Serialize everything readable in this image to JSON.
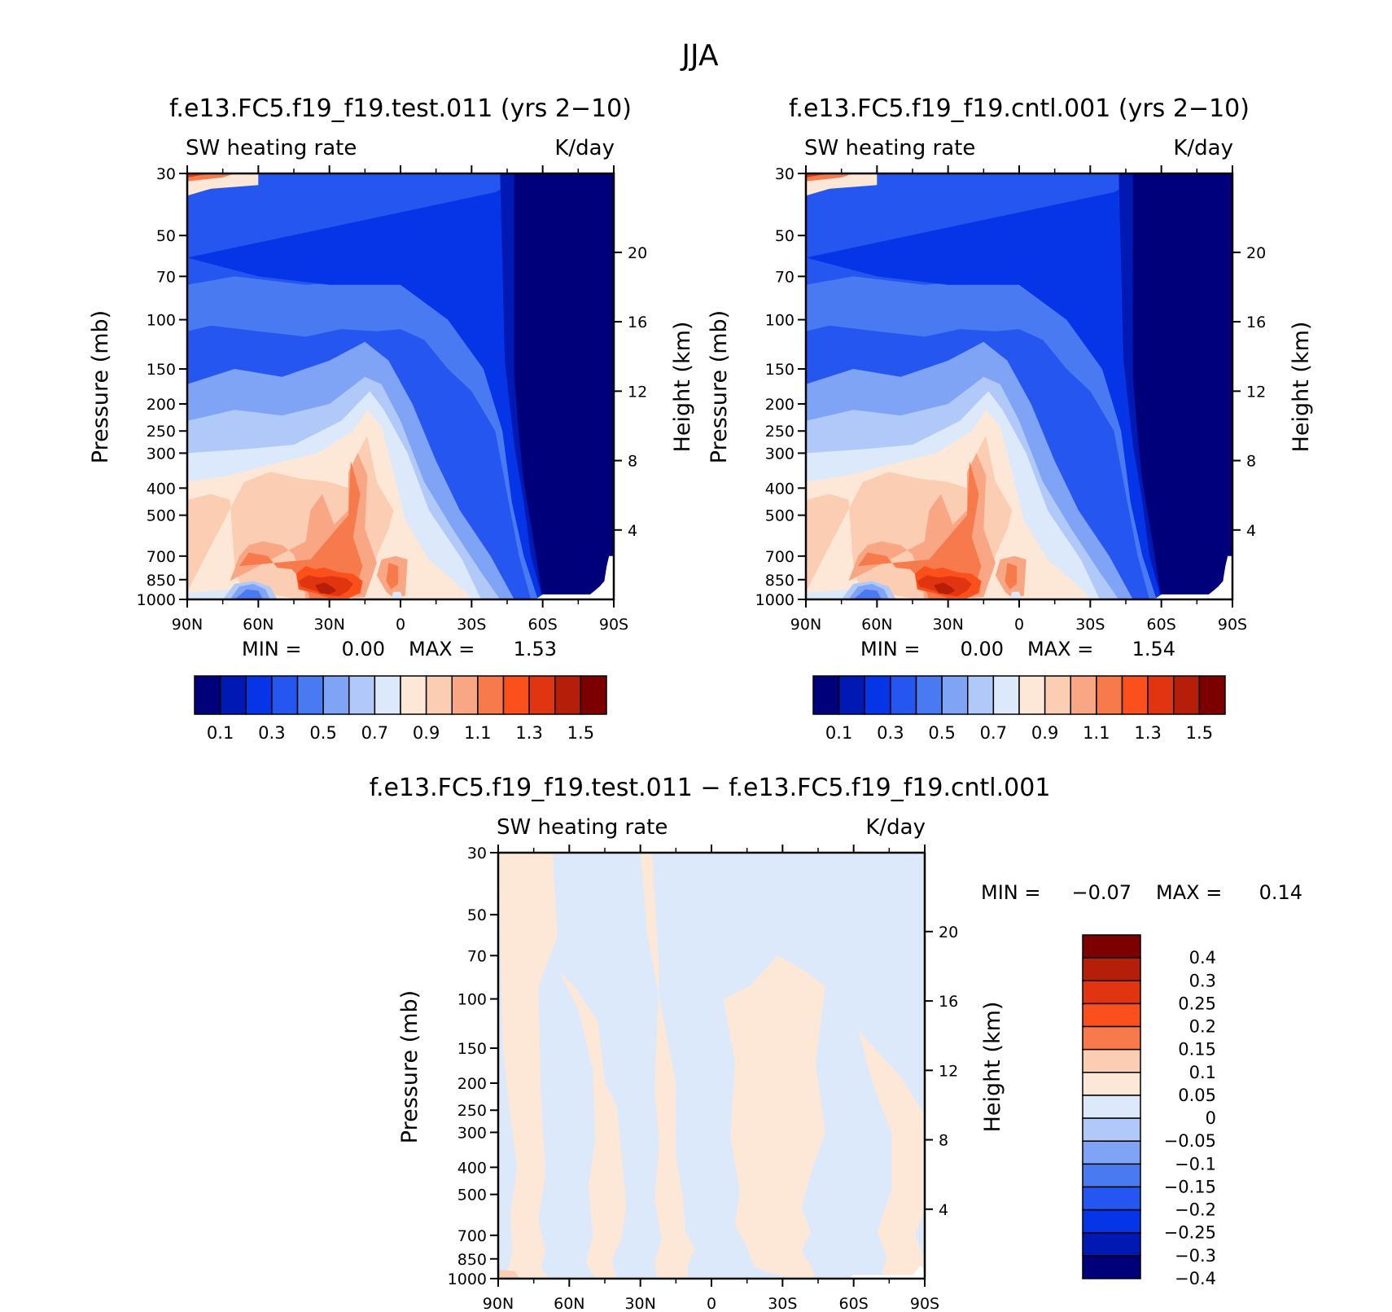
{
  "figure_title": "JJA",
  "colors": {
    "abs_levels": [
      "#00007a",
      "#0019b3",
      "#0535e6",
      "#2557f0",
      "#4a7af2",
      "#7fa3f5",
      "#b0c9f8",
      "#dbe9fb",
      "#fde8d8",
      "#fbcdb2",
      "#f8a683",
      "#f77a4c",
      "#fb4f1c",
      "#e03510",
      "#b51e08",
      "#7c0000"
    ],
    "diff_levels": [
      "#00007a",
      "#0019b3",
      "#0535e6",
      "#2557f0",
      "#4a7af2",
      "#7fa3f5",
      "#b0c9f8",
      "#dbe9fb",
      "#fde8d8",
      "#fbcdb2",
      "#f77a4c",
      "#fb4f1c",
      "#e03510",
      "#b51e08",
      "#7c0000"
    ]
  },
  "panels": [
    {
      "title": "f.e13.FC5.f19_f19.test.011 (yrs 2−10)",
      "left_label": "SW heating rate",
      "right_label": "K/day",
      "ylabel": "Pressure (mb)",
      "y2label": "Height (km)",
      "min_text": "MIN =",
      "min_value": "0.00",
      "max_text": "MAX =",
      "max_value": "1.53",
      "colorbar_labels": [
        "0.1",
        "0.3",
        "0.5",
        "0.7",
        "0.9",
        "1.1",
        "1.3",
        "1.5"
      ]
    },
    {
      "title": "f.e13.FC5.f19_f19.cntl.001 (yrs 2−10)",
      "left_label": "SW heating rate",
      "right_label": "K/day",
      "ylabel": "Pressure (mb)",
      "y2label": "Height (km)",
      "min_text": "MIN =",
      "min_value": "0.00",
      "max_text": "MAX =",
      "max_value": "1.54",
      "colorbar_labels": [
        "0.1",
        "0.3",
        "0.5",
        "0.7",
        "0.9",
        "1.1",
        "1.3",
        "1.5"
      ]
    },
    {
      "title": "f.e13.FC5.f19_f19.test.011 − f.e13.FC5.f19_f19.cntl.001",
      "left_label": "SW heating rate",
      "right_label": "K/day",
      "ylabel": "Pressure (mb)",
      "y2label": "Height (km)",
      "min_text": "MIN =",
      "min_value": "−0.07",
      "max_text": "MAX =",
      "max_value": "0.14",
      "colorbar_labels": [
        "0.4",
        "0.3",
        "0.25",
        "0.2",
        "0.15",
        "0.1",
        "0.05",
        "0",
        "−0.05",
        "−0.1",
        "−0.15",
        "−0.2",
        "−0.25",
        "−0.3",
        "−0.4"
      ]
    }
  ],
  "chart_data": [
    {
      "type": "heatmap",
      "title": "f.e13.FC5.f19_f19.test.011 (yrs 2−10)",
      "variable": "SW heating rate",
      "units": "K/day",
      "x_tick_labels": [
        "90N",
        "60N",
        "30N",
        "0",
        "30S",
        "60S",
        "90S"
      ],
      "x": [
        90,
        60,
        30,
        0,
        -30,
        -60,
        -90
      ],
      "y_tick_labels": [
        "30",
        "50",
        "70",
        "100",
        "150",
        "200",
        "250",
        "300",
        "400",
        "500",
        "700",
        "850",
        "1000"
      ],
      "y": [
        30,
        50,
        70,
        100,
        150,
        200,
        250,
        300,
        400,
        500,
        700,
        850,
        1000
      ],
      "y_scale": "log",
      "ylim": [
        1000,
        30
      ],
      "y2_tick_labels": [
        "20",
        "16",
        "12",
        "8",
        "4"
      ],
      "xlabel": "",
      "ylabel": "Pressure (mb)",
      "y2label": "Height (km)",
      "min": 0.0,
      "max": 1.53,
      "contour_levels": [
        0.1,
        0.2,
        0.3,
        0.4,
        0.5,
        0.6,
        0.7,
        0.8,
        0.9,
        1.0,
        1.1,
        1.2,
        1.3,
        1.4,
        1.5
      ]
    },
    {
      "type": "heatmap",
      "title": "f.e13.FC5.f19_f19.cntl.001 (yrs 2−10)",
      "variable": "SW heating rate",
      "units": "K/day",
      "x_tick_labels": [
        "90N",
        "60N",
        "30N",
        "0",
        "30S",
        "60S",
        "90S"
      ],
      "x": [
        90,
        60,
        30,
        0,
        -30,
        -60,
        -90
      ],
      "y_tick_labels": [
        "30",
        "50",
        "70",
        "100",
        "150",
        "200",
        "250",
        "300",
        "400",
        "500",
        "700",
        "850",
        "1000"
      ],
      "y": [
        30,
        50,
        70,
        100,
        150,
        200,
        250,
        300,
        400,
        500,
        700,
        850,
        1000
      ],
      "y_scale": "log",
      "ylim": [
        1000,
        30
      ],
      "y2_tick_labels": [
        "20",
        "16",
        "12",
        "8",
        "4"
      ],
      "xlabel": "",
      "ylabel": "Pressure (mb)",
      "y2label": "Height (km)",
      "min": 0.0,
      "max": 1.54,
      "contour_levels": [
        0.1,
        0.2,
        0.3,
        0.4,
        0.5,
        0.6,
        0.7,
        0.8,
        0.9,
        1.0,
        1.1,
        1.2,
        1.3,
        1.4,
        1.5
      ]
    },
    {
      "type": "heatmap",
      "title": "f.e13.FC5.f19_f19.test.011 − f.e13.FC5.f19_f19.cntl.001",
      "variable": "SW heating rate",
      "units": "K/day",
      "x_tick_labels": [
        "90N",
        "60N",
        "30N",
        "0",
        "30S",
        "60S",
        "90S"
      ],
      "x": [
        90,
        60,
        30,
        0,
        -30,
        -60,
        -90
      ],
      "y_tick_labels": [
        "30",
        "50",
        "70",
        "100",
        "150",
        "200",
        "250",
        "300",
        "400",
        "500",
        "700",
        "850",
        "1000"
      ],
      "y": [
        30,
        50,
        70,
        100,
        150,
        200,
        250,
        300,
        400,
        500,
        700,
        850,
        1000
      ],
      "y_scale": "log",
      "ylim": [
        1000,
        30
      ],
      "y2_tick_labels": [
        "20",
        "16",
        "12",
        "8",
        "4"
      ],
      "xlabel": "",
      "ylabel": "Pressure (mb)",
      "y2label": "Height (km)",
      "min": -0.07,
      "max": 0.14,
      "contour_levels": [
        -0.4,
        -0.3,
        -0.25,
        -0.2,
        -0.15,
        -0.1,
        -0.05,
        0,
        0.05,
        0.1,
        0.15,
        0.2,
        0.25,
        0.3,
        0.4
      ]
    }
  ]
}
